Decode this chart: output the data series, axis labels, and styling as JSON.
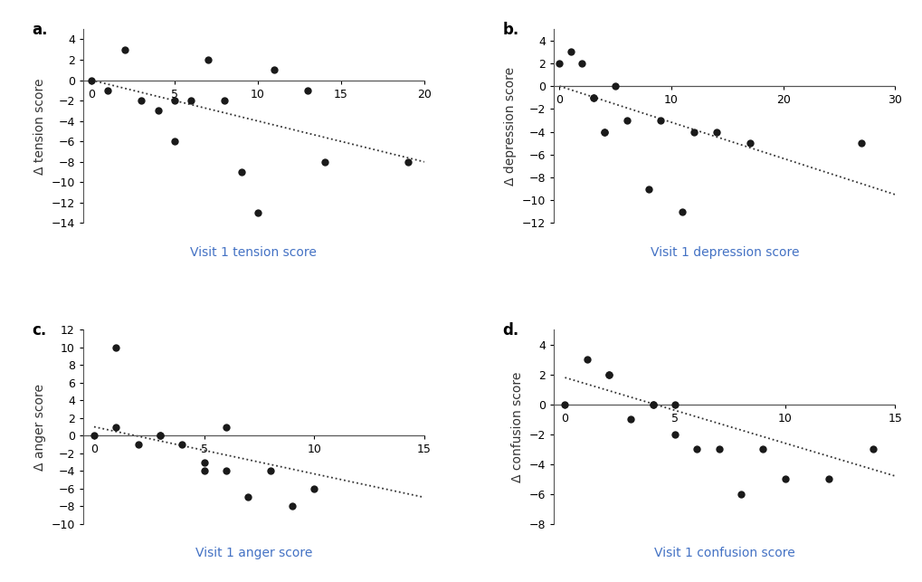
{
  "panel_a": {
    "x": [
      0,
      1,
      2,
      3,
      4,
      5,
      5,
      6,
      7,
      8,
      9,
      10,
      11,
      13,
      14,
      19
    ],
    "y": [
      0,
      -1,
      3,
      -2,
      -3,
      -2,
      -6,
      -2,
      2,
      -2,
      -9,
      -13,
      1,
      -1,
      -8,
      -8
    ],
    "trendline_x": [
      0,
      20
    ],
    "trendline_y": [
      0,
      -8.0
    ],
    "xlabel": "Visit 1 tension score",
    "ylabel": "Δ tension score",
    "xlim": [
      -0.5,
      20
    ],
    "ylim": [
      -14,
      5
    ],
    "xticks": [
      0,
      5,
      10,
      15,
      20
    ],
    "yticks": [
      -14,
      -12,
      -10,
      -8,
      -6,
      -4,
      -2,
      0,
      2,
      4
    ],
    "label": "a."
  },
  "panel_b": {
    "x": [
      0,
      1,
      2,
      3,
      3,
      4,
      4,
      5,
      6,
      8,
      9,
      11,
      12,
      14,
      17,
      27
    ],
    "y": [
      2,
      3,
      2,
      -1,
      -1,
      -4,
      -4,
      0,
      -3,
      -9,
      -3,
      -11,
      -4,
      -4,
      -5,
      -5
    ],
    "trendline_x": [
      0,
      30
    ],
    "trendline_y": [
      0,
      -9.5
    ],
    "xlabel": "Visit 1 depression score",
    "ylabel": "Δ depression score",
    "xlim": [
      -0.5,
      30
    ],
    "ylim": [
      -12,
      5
    ],
    "xticks": [
      0,
      10,
      20,
      30
    ],
    "yticks": [
      -12,
      -10,
      -8,
      -6,
      -4,
      -2,
      0,
      2,
      4
    ],
    "label": "b."
  },
  "panel_c": {
    "x": [
      0,
      1,
      1,
      2,
      3,
      3,
      4,
      5,
      5,
      6,
      6,
      7,
      8,
      9,
      10
    ],
    "y": [
      0,
      10,
      1,
      -1,
      0,
      0,
      -1,
      -3,
      -4,
      1,
      -4,
      -7,
      -4,
      -8,
      -6
    ],
    "trendline_x": [
      0,
      15
    ],
    "trendline_y": [
      1.0,
      -7.0
    ],
    "xlabel": "Visit 1 anger score",
    "ylabel": "Δ anger score",
    "xlim": [
      -0.5,
      15
    ],
    "ylim": [
      -10,
      12
    ],
    "xticks": [
      0,
      5,
      10,
      15
    ],
    "yticks": [
      -10,
      -8,
      -6,
      -4,
      -2,
      0,
      2,
      4,
      6,
      8,
      10,
      12
    ],
    "label": "c."
  },
  "panel_d": {
    "x": [
      0,
      1,
      2,
      2,
      3,
      4,
      4,
      5,
      5,
      6,
      7,
      8,
      9,
      10,
      12,
      14
    ],
    "y": [
      0,
      3,
      2,
      2,
      -1,
      0,
      0,
      0,
      -2,
      -3,
      -3,
      -6,
      -3,
      -5,
      -5,
      -3
    ],
    "trendline_x": [
      0,
      15
    ],
    "trendline_y": [
      1.8,
      -4.8
    ],
    "xlabel": "Visit 1 confusion score",
    "ylabel": "Δ confusion score",
    "xlim": [
      -0.5,
      15
    ],
    "ylim": [
      -8,
      5
    ],
    "xticks": [
      0,
      5,
      10,
      15
    ],
    "yticks": [
      -8,
      -6,
      -4,
      -2,
      0,
      2,
      4
    ],
    "label": "d."
  },
  "background_color": "#ffffff",
  "dot_color": "#1a1a1a",
  "dot_size": 18,
  "trendline_color": "#333333",
  "axis_color": "#555555",
  "xlabel_color": "#4472c4",
  "ylabel_color": "#333333",
  "font_size_label": 12,
  "font_size_axis_label": 10,
  "font_size_tick": 9
}
